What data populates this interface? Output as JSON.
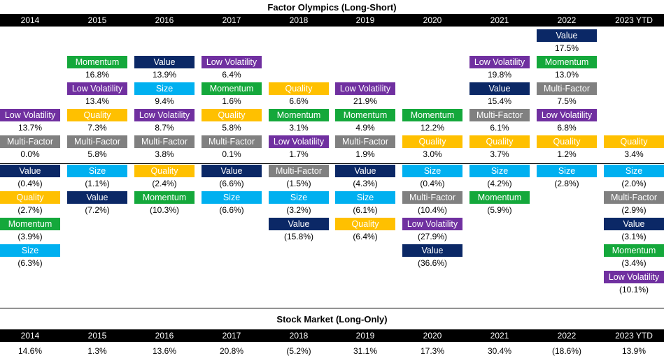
{
  "title_top": "Factor Olympics (Long-Short)",
  "title_bottom": "Stock Market (Long-Only)",
  "years": [
    "2014",
    "2015",
    "2016",
    "2017",
    "2018",
    "2019",
    "2020",
    "2021",
    "2022",
    "2023 YTD"
  ],
  "factor_colors": {
    "Value": "#0b2866",
    "Momentum": "#14a83b",
    "Low Volatility": "#7030a0",
    "Quality": "#ffc000",
    "Size": "#00b0f0",
    "Multi-Factor": "#808080"
  },
  "chart_data": {
    "type": "table",
    "title": "Factor Olympics (Long-Short)",
    "series": [
      {
        "year": "2014",
        "ranking": [
          {
            "factor": "Low Volatility",
            "value": "13.7%",
            "num": 13.7
          },
          {
            "factor": "Multi-Factor",
            "value": "0.0%",
            "num": 0.0
          },
          {
            "factor": "Value",
            "value": "(0.4%)",
            "num": -0.4
          },
          {
            "factor": "Quality",
            "value": "(2.7%)",
            "num": -2.7
          },
          {
            "factor": "Momentum",
            "value": "(3.9%)",
            "num": -3.9
          },
          {
            "factor": "Size",
            "value": "(6.3%)",
            "num": -6.3
          }
        ]
      },
      {
        "year": "2015",
        "ranking": [
          {
            "factor": "Momentum",
            "value": "16.8%",
            "num": 16.8
          },
          {
            "factor": "Low Volatility",
            "value": "13.4%",
            "num": 13.4
          },
          {
            "factor": "Quality",
            "value": "7.3%",
            "num": 7.3
          },
          {
            "factor": "Multi-Factor",
            "value": "5.8%",
            "num": 5.8
          },
          {
            "factor": "Size",
            "value": "(1.1%)",
            "num": -1.1
          },
          {
            "factor": "Value",
            "value": "(7.2%)",
            "num": -7.2
          }
        ]
      },
      {
        "year": "2016",
        "ranking": [
          {
            "factor": "Value",
            "value": "13.9%",
            "num": 13.9
          },
          {
            "factor": "Size",
            "value": "9.4%",
            "num": 9.4
          },
          {
            "factor": "Low Volatility",
            "value": "8.7%",
            "num": 8.7
          },
          {
            "factor": "Multi-Factor",
            "value": "3.8%",
            "num": 3.8
          },
          {
            "factor": "Quality",
            "value": "(2.4%)",
            "num": -2.4
          },
          {
            "factor": "Momentum",
            "value": "(10.3%)",
            "num": -10.3
          }
        ]
      },
      {
        "year": "2017",
        "ranking": [
          {
            "factor": "Low Volatility",
            "value": "6.4%",
            "num": 6.4
          },
          {
            "factor": "Momentum",
            "value": "1.6%",
            "num": 1.6
          },
          {
            "factor": "Quality",
            "value": "5.8%",
            "num": 5.8
          },
          {
            "factor": "Multi-Factor",
            "value": "0.1%",
            "num": 0.1
          },
          {
            "factor": "Value",
            "value": "(6.6%)",
            "num": -6.6
          },
          {
            "factor": "Size",
            "value": "(6.6%)",
            "num": -6.6
          }
        ]
      },
      {
        "year": "2018",
        "ranking": [
          {
            "factor": "Quality",
            "value": "6.6%",
            "num": 6.6
          },
          {
            "factor": "Momentum",
            "value": "3.1%",
            "num": 3.1
          },
          {
            "factor": "Low Volatility",
            "value": "1.7%",
            "num": 1.7
          },
          {
            "factor": "Multi-Factor",
            "value": "(1.5%)",
            "num": -1.5
          },
          {
            "factor": "Size",
            "value": "(3.2%)",
            "num": -3.2
          },
          {
            "factor": "Value",
            "value": "(15.8%)",
            "num": -15.8
          }
        ]
      },
      {
        "year": "2019",
        "ranking": [
          {
            "factor": "Low Volatility",
            "value": "21.9%",
            "num": 21.9
          },
          {
            "factor": "Momentum",
            "value": "4.9%",
            "num": 4.9
          },
          {
            "factor": "Multi-Factor",
            "value": "1.9%",
            "num": 1.9
          },
          {
            "factor": "Value",
            "value": "(4.3%)",
            "num": -4.3
          },
          {
            "factor": "Size",
            "value": "(6.1%)",
            "num": -6.1
          },
          {
            "factor": "Quality",
            "value": "(6.4%)",
            "num": -6.4
          }
        ]
      },
      {
        "year": "2020",
        "ranking": [
          {
            "factor": "Momentum",
            "value": "12.2%",
            "num": 12.2
          },
          {
            "factor": "Quality",
            "value": "3.0%",
            "num": 3.0
          },
          {
            "factor": "Size",
            "value": "(0.4%)",
            "num": -0.4
          },
          {
            "factor": "Multi-Factor",
            "value": "(10.4%)",
            "num": -10.4
          },
          {
            "factor": "Low Volatility",
            "value": "(27.9%)",
            "num": -27.9
          },
          {
            "factor": "Value",
            "value": "(36.6%)",
            "num": -36.6
          }
        ]
      },
      {
        "year": "2021",
        "ranking": [
          {
            "factor": "Low Volatility",
            "value": "19.8%",
            "num": 19.8
          },
          {
            "factor": "Value",
            "value": "15.4%",
            "num": 15.4
          },
          {
            "factor": "Multi-Factor",
            "value": "6.1%",
            "num": 6.1
          },
          {
            "factor": "Quality",
            "value": "3.7%",
            "num": 3.7
          },
          {
            "factor": "Size",
            "value": "(4.2%)",
            "num": -4.2
          },
          {
            "factor": "Momentum",
            "value": "(5.9%)",
            "num": -5.9
          }
        ]
      },
      {
        "year": "2022",
        "ranking": [
          {
            "factor": "Value",
            "value": "17.5%",
            "num": 17.5
          },
          {
            "factor": "Momentum",
            "value": "13.0%",
            "num": 13.0
          },
          {
            "factor": "Multi-Factor",
            "value": "7.5%",
            "num": 7.5
          },
          {
            "factor": "Low Volatility",
            "value": "6.8%",
            "num": 6.8
          },
          {
            "factor": "Quality",
            "value": "1.2%",
            "num": 1.2
          },
          {
            "factor": "Size",
            "value": "(2.8%)",
            "num": -2.8
          }
        ]
      },
      {
        "year": "2023 YTD",
        "ranking": [
          {
            "factor": "Quality",
            "value": "3.4%",
            "num": 3.4
          },
          {
            "factor": "Size",
            "value": "(2.0%)",
            "num": -2.0
          },
          {
            "factor": "Multi-Factor",
            "value": "(2.9%)",
            "num": -2.9
          },
          {
            "factor": "Value",
            "value": "(3.1%)",
            "num": -3.1
          },
          {
            "factor": "Momentum",
            "value": "(3.4%)",
            "num": -3.4
          },
          {
            "factor": "Low Volatility",
            "value": "(10.1%)",
            "num": -10.1
          }
        ]
      }
    ]
  },
  "stock_market": [
    {
      "year": "2014",
      "value": "14.6%"
    },
    {
      "year": "2015",
      "value": "1.3%"
    },
    {
      "year": "2016",
      "value": "13.6%"
    },
    {
      "year": "2017",
      "value": "20.8%"
    },
    {
      "year": "2018",
      "value": "(5.2%)"
    },
    {
      "year": "2019",
      "value": "31.1%"
    },
    {
      "year": "2020",
      "value": "17.3%"
    },
    {
      "year": "2021",
      "value": "30.4%"
    },
    {
      "year": "2022",
      "value": "(18.6%)"
    },
    {
      "year": "2023 YTD",
      "value": "13.9%"
    }
  ]
}
